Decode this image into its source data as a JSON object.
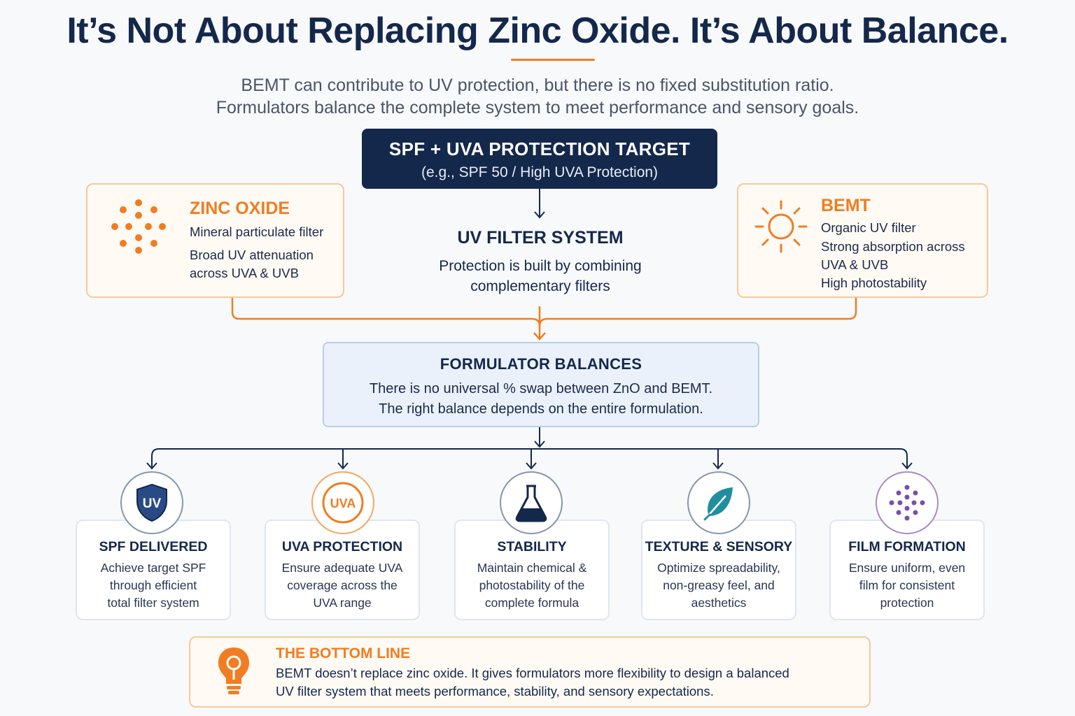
{
  "title": "It’s Not About Replacing Zinc Oxide. It’s About Balance.",
  "subtitle": [
    "BEMT can contribute to UV protection, but there is no fixed substitution ratio.",
    "Formulators balance the complete system to meet performance and sensory goals."
  ],
  "target": {
    "title": "SPF + UVA PROTECTION TARGET",
    "subtitle": "(e.g., SPF 50 / High UVA Protection)"
  },
  "zinc_oxide": {
    "title": "ZINC OXIDE",
    "lines": [
      "Mineral particulate filter",
      "Broad UV attenuation",
      "across UVA & UVB"
    ],
    "icon": "dots-particle-icon"
  },
  "bemt": {
    "title": "BEMT",
    "lines": [
      "Organic UV filter",
      "Strong absorption across",
      "UVA & UVB",
      "High photostability"
    ],
    "icon": "sun-icon"
  },
  "uv_system": {
    "title": "UV FILTER SYSTEM",
    "lines": [
      "Protection is built by combining",
      "complementary filters"
    ]
  },
  "balance": {
    "title": "FORMULATOR BALANCES",
    "lines": [
      "There is no universal % swap between ZnO and BEMT.",
      "The right balance depends on the entire formulation."
    ]
  },
  "cards": [
    {
      "title": "SPF DELIVERED",
      "lines": [
        "Achieve target SPF",
        "through efficient",
        "total filter system"
      ],
      "icon": "uv-shield-icon",
      "icon_text": "UV"
    },
    {
      "title": "UVA PROTECTION",
      "lines": [
        "Ensure adequate UVA",
        "coverage across the",
        "UVA range"
      ],
      "icon": "uva-circle-icon",
      "icon_text": "UVA"
    },
    {
      "title": "STABILITY",
      "lines": [
        "Maintain chemical &",
        "photostability of the",
        "complete formula"
      ],
      "icon": "flask-icon"
    },
    {
      "title": "TEXTURE & SENSORY",
      "lines": [
        "Optimize spreadability,",
        "non-greasy feel, and",
        "aesthetics"
      ],
      "icon": "leaf-icon"
    },
    {
      "title": "FILM FORMATION",
      "lines": [
        "Ensure uniform, even",
        "film for consistent",
        "protection"
      ],
      "icon": "film-dots-icon"
    }
  ],
  "bottom_line": {
    "title": "THE BOTTOM LINE",
    "lines": [
      "BEMT doesn’t replace zinc oxide. It gives formulators more flexibility to design a balanced",
      "UV filter system that meets performance, stability, and sensory expectations."
    ],
    "icon": "lightbulb-icon"
  },
  "colors": {
    "navy": "#14284b",
    "orange": "#f07d22",
    "teal": "#1f8fa0",
    "purple": "#7b4fa8"
  }
}
